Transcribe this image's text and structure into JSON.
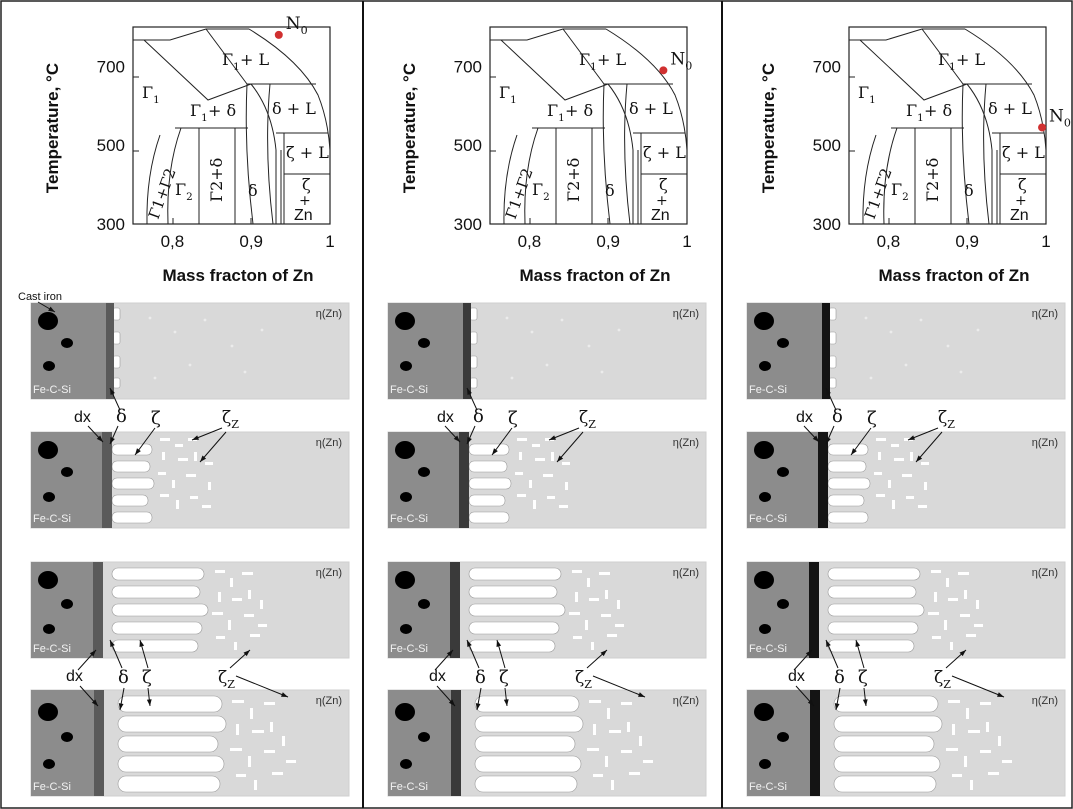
{
  "labels": {
    "y_axis_title": "Temperature, °C",
    "x_axis_title": "Mass fracton of Zn",
    "y_ticks": [
      "700",
      "500",
      "300"
    ],
    "x_ticks": [
      "0,8",
      "0,9",
      "1"
    ],
    "start_point": "N",
    "start_point_sub": "0",
    "cast_iron": "Cast iron",
    "substrate": "Fe-C-Si",
    "melt": "η(Zn)",
    "dx": "dx",
    "delta": "δ",
    "zeta": "ζ",
    "zeta_z": "ζ",
    "zeta_z_sub": "Z"
  },
  "regions": {
    "gamma1": "Γ",
    "gamma1_sub": "1",
    "gamma1_l": "+ L",
    "gamma1_delta": "+ δ",
    "delta_l": "δ + L",
    "zeta_l": "ζ + L",
    "gamma2": "Γ",
    "gamma2_sub": "2",
    "gamma2_delta": "+δ",
    "delta": "δ",
    "zeta": "ζ",
    "plus": "+",
    "zn": "Zn",
    "g1g2_plus": "+",
    "g1g2_g2": "Γ",
    "g1g2_g2_sub": "2"
  },
  "panels": [
    {
      "n0_fraction": 0.935,
      "n0_temperature": 780,
      "top_layer": "dark-gray"
    },
    {
      "n0_fraction": 0.97,
      "n0_temperature": 690,
      "top_layer": "darker"
    },
    {
      "n0_fraction": 0.995,
      "n0_temperature": 545,
      "top_layer": "black"
    }
  ],
  "colors": {
    "substrate": "#8c8c8c",
    "melt": "#d9d9d9",
    "nodule": "#000000",
    "point": "#d03030",
    "layer_left": "#5a5a5a",
    "layer_middle": "#3a3a3a",
    "layer_right": "#141414"
  }
}
